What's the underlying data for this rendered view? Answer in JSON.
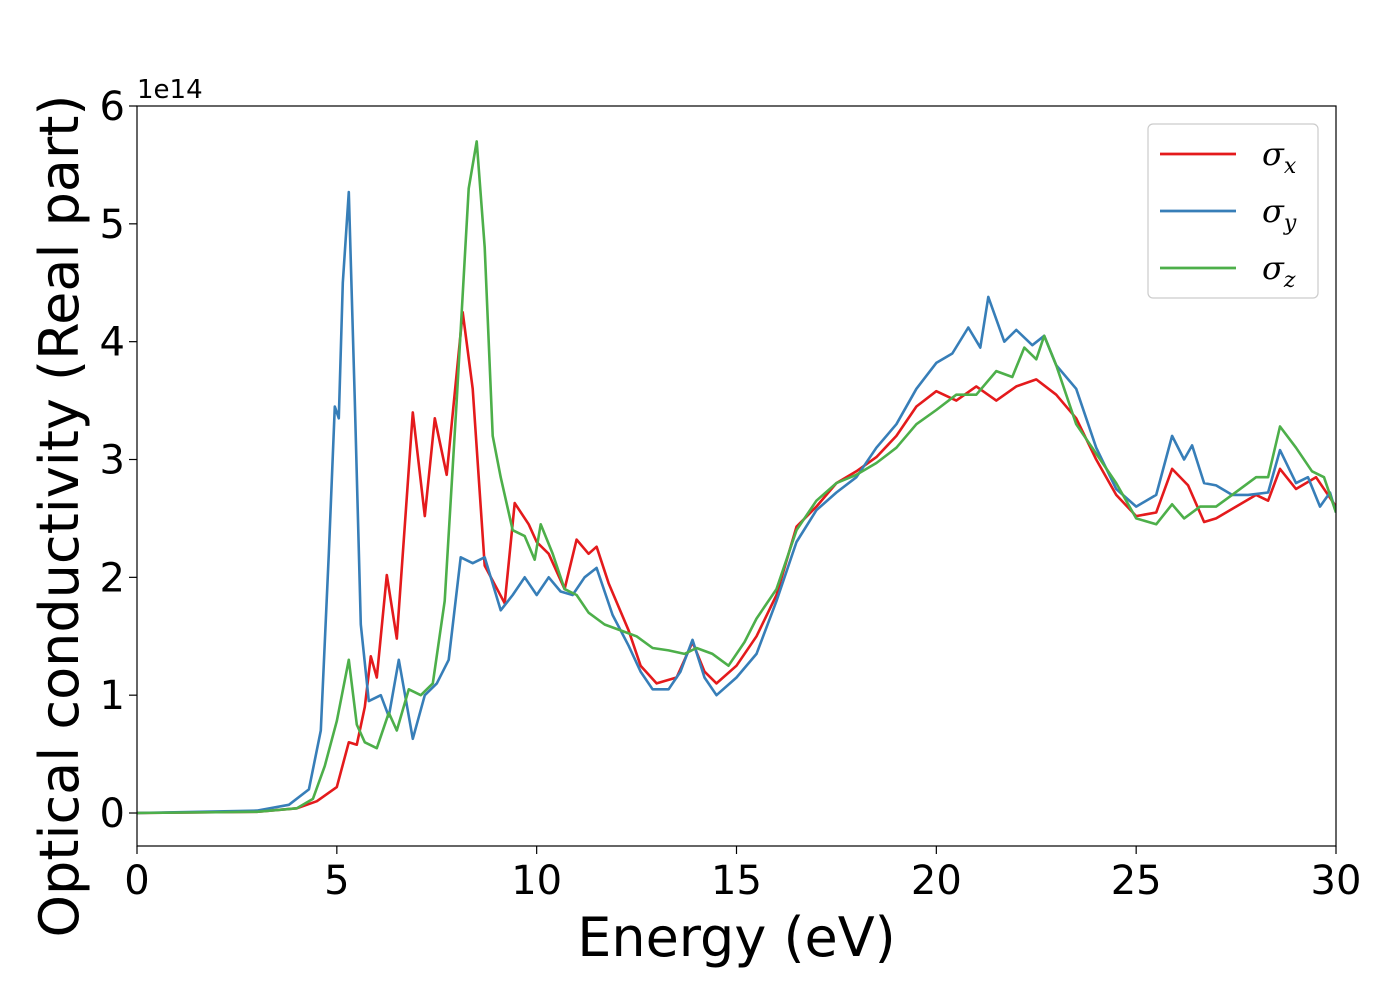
{
  "chart_data": {
    "type": "line",
    "title": "",
    "xlabel": "Energy (eV)",
    "ylabel": "Optical conductivity (Real part)",
    "y_offset_text": "1e14",
    "xlim": [
      0,
      30
    ],
    "ylim": [
      -0.28,
      6
    ],
    "x_ticks": [
      0,
      5,
      10,
      15,
      20,
      25,
      30
    ],
    "x_tick_labels": [
      "0",
      "5",
      "10",
      "15",
      "20",
      "25",
      "30"
    ],
    "y_ticks": [
      0,
      1,
      2,
      3,
      4,
      5,
      6
    ],
    "y_tick_labels": [
      "0",
      "1",
      "2",
      "3",
      "4",
      "5",
      "6"
    ],
    "grid": false,
    "legend_position": "top-right",
    "series": [
      {
        "name": "σx",
        "symbol": "σ",
        "subscript": "x",
        "color": "#e41a1c",
        "points": [
          [
            0,
            0
          ],
          [
            3,
            0.01
          ],
          [
            4,
            0.04
          ],
          [
            4.5,
            0.1
          ],
          [
            5,
            0.22
          ],
          [
            5.3,
            0.6
          ],
          [
            5.5,
            0.58
          ],
          [
            5.7,
            0.9
          ],
          [
            5.85,
            1.33
          ],
          [
            6,
            1.15
          ],
          [
            6.25,
            2.02
          ],
          [
            6.5,
            1.48
          ],
          [
            6.9,
            3.4
          ],
          [
            7.2,
            2.52
          ],
          [
            7.45,
            3.35
          ],
          [
            7.75,
            2.87
          ],
          [
            8.15,
            4.25
          ],
          [
            8.4,
            3.6
          ],
          [
            8.7,
            2.1
          ],
          [
            9.2,
            1.78
          ],
          [
            9.45,
            2.63
          ],
          [
            9.8,
            2.45
          ],
          [
            10,
            2.3
          ],
          [
            10.3,
            2.2
          ],
          [
            10.7,
            1.9
          ],
          [
            11,
            2.32
          ],
          [
            11.3,
            2.2
          ],
          [
            11.5,
            2.26
          ],
          [
            11.8,
            1.95
          ],
          [
            12.3,
            1.55
          ],
          [
            12.6,
            1.25
          ],
          [
            13,
            1.1
          ],
          [
            13.5,
            1.15
          ],
          [
            13.9,
            1.45
          ],
          [
            14.2,
            1.2
          ],
          [
            14.5,
            1.1
          ],
          [
            15,
            1.25
          ],
          [
            15.5,
            1.5
          ],
          [
            16,
            1.85
          ],
          [
            16.5,
            2.43
          ],
          [
            17,
            2.6
          ],
          [
            17.5,
            2.8
          ],
          [
            18,
            2.9
          ],
          [
            18.5,
            3.02
          ],
          [
            19,
            3.2
          ],
          [
            19.5,
            3.45
          ],
          [
            20,
            3.58
          ],
          [
            20.5,
            3.5
          ],
          [
            21,
            3.62
          ],
          [
            21.5,
            3.5
          ],
          [
            22,
            3.62
          ],
          [
            22.5,
            3.68
          ],
          [
            23,
            3.55
          ],
          [
            23.5,
            3.35
          ],
          [
            24,
            3.0
          ],
          [
            24.5,
            2.7
          ],
          [
            25,
            2.52
          ],
          [
            25.5,
            2.55
          ],
          [
            25.9,
            2.92
          ],
          [
            26.3,
            2.78
          ],
          [
            26.7,
            2.47
          ],
          [
            27,
            2.5
          ],
          [
            27.5,
            2.6
          ],
          [
            28,
            2.7
          ],
          [
            28.3,
            2.65
          ],
          [
            28.6,
            2.92
          ],
          [
            29,
            2.75
          ],
          [
            29.5,
            2.85
          ],
          [
            30,
            2.6
          ]
        ]
      },
      {
        "name": "σy",
        "symbol": "σ",
        "subscript": "y",
        "color": "#377eb8",
        "points": [
          [
            0,
            0
          ],
          [
            3,
            0.02
          ],
          [
            3.8,
            0.07
          ],
          [
            4.3,
            0.2
          ],
          [
            4.6,
            0.7
          ],
          [
            4.8,
            2.2
          ],
          [
            4.95,
            3.45
          ],
          [
            5.05,
            3.35
          ],
          [
            5.15,
            4.5
          ],
          [
            5.3,
            5.27
          ],
          [
            5.45,
            3.5
          ],
          [
            5.6,
            1.6
          ],
          [
            5.8,
            0.95
          ],
          [
            6.1,
            1.0
          ],
          [
            6.3,
            0.82
          ],
          [
            6.55,
            1.3
          ],
          [
            6.9,
            0.63
          ],
          [
            7.2,
            1.0
          ],
          [
            7.5,
            1.1
          ],
          [
            7.8,
            1.3
          ],
          [
            8.1,
            2.17
          ],
          [
            8.4,
            2.12
          ],
          [
            8.7,
            2.17
          ],
          [
            9.1,
            1.72
          ],
          [
            9.4,
            1.85
          ],
          [
            9.7,
            2.0
          ],
          [
            10,
            1.85
          ],
          [
            10.3,
            2.0
          ],
          [
            10.6,
            1.88
          ],
          [
            10.9,
            1.85
          ],
          [
            11.2,
            2.0
          ],
          [
            11.5,
            2.08
          ],
          [
            11.9,
            1.68
          ],
          [
            12.3,
            1.42
          ],
          [
            12.6,
            1.2
          ],
          [
            12.9,
            1.05
          ],
          [
            13.3,
            1.05
          ],
          [
            13.6,
            1.2
          ],
          [
            13.9,
            1.47
          ],
          [
            14.2,
            1.15
          ],
          [
            14.5,
            1.0
          ],
          [
            15,
            1.15
          ],
          [
            15.5,
            1.35
          ],
          [
            16,
            1.8
          ],
          [
            16.5,
            2.3
          ],
          [
            17,
            2.57
          ],
          [
            17.5,
            2.72
          ],
          [
            18,
            2.85
          ],
          [
            18.5,
            3.1
          ],
          [
            19,
            3.3
          ],
          [
            19.5,
            3.6
          ],
          [
            20,
            3.82
          ],
          [
            20.4,
            3.9
          ],
          [
            20.8,
            4.12
          ],
          [
            21.1,
            3.95
          ],
          [
            21.3,
            4.38
          ],
          [
            21.7,
            4.0
          ],
          [
            22,
            4.1
          ],
          [
            22.4,
            3.97
          ],
          [
            22.7,
            4.05
          ],
          [
            23,
            3.8
          ],
          [
            23.5,
            3.6
          ],
          [
            24,
            3.1
          ],
          [
            24.5,
            2.75
          ],
          [
            25,
            2.6
          ],
          [
            25.5,
            2.7
          ],
          [
            25.9,
            3.2
          ],
          [
            26.2,
            3.0
          ],
          [
            26.4,
            3.12
          ],
          [
            26.7,
            2.8
          ],
          [
            27,
            2.78
          ],
          [
            27.4,
            2.7
          ],
          [
            27.8,
            2.7
          ],
          [
            28.3,
            2.72
          ],
          [
            28.6,
            3.08
          ],
          [
            29,
            2.8
          ],
          [
            29.3,
            2.85
          ],
          [
            29.6,
            2.6
          ],
          [
            29.85,
            2.72
          ],
          [
            30,
            2.55
          ]
        ]
      },
      {
        "name": "σz",
        "symbol": "σ",
        "subscript": "z",
        "color": "#4daf4a",
        "points": [
          [
            0,
            0
          ],
          [
            3,
            0.01
          ],
          [
            4,
            0.04
          ],
          [
            4.4,
            0.12
          ],
          [
            4.7,
            0.4
          ],
          [
            5.0,
            0.78
          ],
          [
            5.3,
            1.3
          ],
          [
            5.5,
            0.75
          ],
          [
            5.7,
            0.6
          ],
          [
            6,
            0.55
          ],
          [
            6.3,
            0.85
          ],
          [
            6.5,
            0.7
          ],
          [
            6.8,
            1.05
          ],
          [
            7.1,
            1.0
          ],
          [
            7.4,
            1.1
          ],
          [
            7.7,
            1.8
          ],
          [
            8.0,
            3.5
          ],
          [
            8.3,
            5.3
          ],
          [
            8.5,
            5.7
          ],
          [
            8.7,
            4.8
          ],
          [
            8.9,
            3.2
          ],
          [
            9.1,
            2.85
          ],
          [
            9.4,
            2.4
          ],
          [
            9.7,
            2.35
          ],
          [
            9.95,
            2.15
          ],
          [
            10.1,
            2.45
          ],
          [
            10.4,
            2.2
          ],
          [
            10.7,
            1.9
          ],
          [
            11.0,
            1.85
          ],
          [
            11.3,
            1.7
          ],
          [
            11.7,
            1.6
          ],
          [
            12.1,
            1.55
          ],
          [
            12.5,
            1.5
          ],
          [
            12.9,
            1.4
          ],
          [
            13.3,
            1.38
          ],
          [
            13.7,
            1.35
          ],
          [
            14.0,
            1.4
          ],
          [
            14.4,
            1.35
          ],
          [
            14.8,
            1.25
          ],
          [
            15.2,
            1.45
          ],
          [
            15.5,
            1.65
          ],
          [
            16,
            1.9
          ],
          [
            16.5,
            2.4
          ],
          [
            17,
            2.65
          ],
          [
            17.5,
            2.8
          ],
          [
            18,
            2.87
          ],
          [
            18.5,
            2.97
          ],
          [
            19,
            3.1
          ],
          [
            19.5,
            3.3
          ],
          [
            20,
            3.42
          ],
          [
            20.5,
            3.55
          ],
          [
            21,
            3.55
          ],
          [
            21.5,
            3.75
          ],
          [
            21.9,
            3.7
          ],
          [
            22.2,
            3.95
          ],
          [
            22.5,
            3.85
          ],
          [
            22.7,
            4.05
          ],
          [
            23,
            3.8
          ],
          [
            23.5,
            3.3
          ],
          [
            24,
            3.05
          ],
          [
            24.5,
            2.8
          ],
          [
            25,
            2.5
          ],
          [
            25.5,
            2.45
          ],
          [
            25.9,
            2.62
          ],
          [
            26.2,
            2.5
          ],
          [
            26.6,
            2.6
          ],
          [
            27,
            2.6
          ],
          [
            27.4,
            2.7
          ],
          [
            28,
            2.85
          ],
          [
            28.3,
            2.85
          ],
          [
            28.6,
            3.28
          ],
          [
            29,
            3.1
          ],
          [
            29.4,
            2.9
          ],
          [
            29.7,
            2.85
          ],
          [
            30,
            2.55
          ]
        ]
      }
    ]
  }
}
